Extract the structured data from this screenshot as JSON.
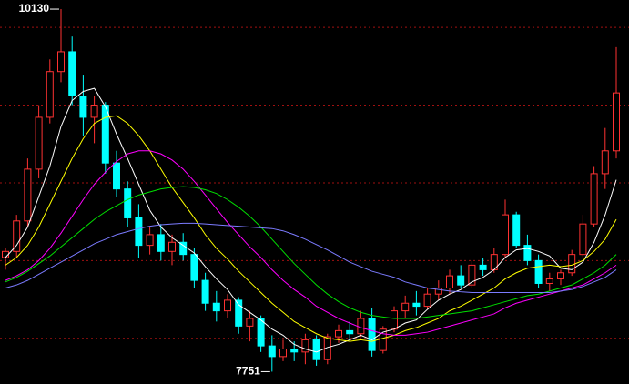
{
  "chart_data": {
    "type": "candlestick",
    "up_color": "#ff3232",
    "down_color": "#00ffff",
    "grid_color": "#a01010",
    "ylim": [
      7670,
      10190
    ],
    "gridlines": [
      10010,
      9500,
      8990,
      8480,
      7970
    ],
    "open": [
      8500,
      8540,
      8740,
      9080,
      9420,
      9720,
      9850,
      9560,
      9420,
      9500,
      9120,
      8950,
      8760,
      8580,
      8650,
      8540,
      8600,
      8520,
      8350,
      8200,
      8150,
      8220,
      8050,
      8100,
      7920,
      7850,
      7900,
      7880,
      7960,
      7830,
      7980,
      8020,
      8000,
      8100,
      7890,
      8030,
      8150,
      8200,
      8180,
      8260,
      8300,
      8380,
      8320,
      8450,
      8420,
      8520,
      8780,
      8580,
      8480,
      8330,
      8360,
      8400,
      8520,
      8720,
      9050,
      9200
    ],
    "high": [
      8560,
      8780,
      9150,
      9500,
      9800,
      10130,
      9950,
      9700,
      9560,
      9520,
      9200,
      9000,
      8850,
      8700,
      8720,
      8650,
      8660,
      8560,
      8400,
      8280,
      8260,
      8240,
      8150,
      8120,
      7990,
      7960,
      7950,
      8000,
      7990,
      8000,
      8060,
      8080,
      8150,
      8170,
      8050,
      8180,
      8250,
      8280,
      8300,
      8350,
      8420,
      8450,
      8480,
      8500,
      8560,
      8880,
      8800,
      8650,
      8520,
      8400,
      8420,
      8550,
      8780,
      9100,
      9350,
      9880
    ],
    "low": [
      8420,
      8500,
      8700,
      9020,
      9380,
      9650,
      9500,
      9300,
      9250,
      9050,
      8900,
      8700,
      8500,
      8520,
      8480,
      8450,
      8480,
      8300,
      8150,
      8080,
      8100,
      8000,
      7950,
      7880,
      7751,
      7820,
      7820,
      7800,
      7790,
      7800,
      7940,
      7960,
      7980,
      7850,
      7870,
      8010,
      8100,
      8120,
      8160,
      8220,
      8260,
      8300,
      8300,
      8380,
      8400,
      8500,
      8560,
      8450,
      8300,
      8280,
      8320,
      8380,
      8500,
      8700,
      8950,
      9150
    ],
    "close": [
      8540,
      8740,
      9080,
      9420,
      9720,
      9850,
      9560,
      9420,
      9500,
      9120,
      8950,
      8760,
      8580,
      8650,
      8540,
      8600,
      8520,
      8350,
      8200,
      8150,
      8220,
      8050,
      8100,
      7920,
      7850,
      7900,
      7880,
      7960,
      7830,
      7980,
      8020,
      8000,
      8100,
      7890,
      8030,
      8150,
      8200,
      8180,
      8260,
      8300,
      8380,
      8320,
      8450,
      8420,
      8520,
      8780,
      8580,
      8480,
      8330,
      8360,
      8400,
      8520,
      8720,
      9050,
      9200,
      9580
    ],
    "lines": [
      {
        "color": "#ffffff",
        "values": [
          8500,
          8580,
          8700,
          8900,
          9100,
          9360,
          9530,
          9590,
          9610,
          9490,
          9310,
          9150,
          8980,
          8810,
          8700,
          8630,
          8580,
          8530,
          8440,
          8360,
          8290,
          8190,
          8140,
          8090,
          8030,
          7990,
          7930,
          7900,
          7880,
          7910,
          7930,
          7960,
          7990,
          7960,
          8010,
          8030,
          8070,
          8090,
          8160,
          8220,
          8260,
          8290,
          8340,
          8370,
          8420,
          8500,
          8550,
          8560,
          8540,
          8510,
          8430,
          8420,
          8470,
          8600,
          8780,
          9010
        ]
      },
      {
        "color": "#ffff00",
        "values": [
          8450,
          8500,
          8580,
          8700,
          8850,
          9000,
          9150,
          9280,
          9380,
          9420,
          9430,
          9380,
          9300,
          9200,
          9080,
          8960,
          8860,
          8760,
          8650,
          8560,
          8490,
          8410,
          8340,
          8270,
          8200,
          8140,
          8080,
          8040,
          8000,
          7970,
          7960,
          7950,
          7960,
          7950,
          7970,
          7990,
          8020,
          8040,
          8070,
          8100,
          8150,
          8180,
          8220,
          8260,
          8300,
          8360,
          8400,
          8430,
          8440,
          8450,
          8440,
          8450,
          8480,
          8540,
          8620,
          8750
        ]
      },
      {
        "color": "#ff00ff",
        "values": [
          8350,
          8380,
          8420,
          8480,
          8560,
          8660,
          8770,
          8880,
          8980,
          9060,
          9130,
          9180,
          9200,
          9200,
          9180,
          9140,
          9080,
          9000,
          8910,
          8820,
          8730,
          8650,
          8570,
          8500,
          8420,
          8350,
          8290,
          8240,
          8180,
          8140,
          8100,
          8070,
          8040,
          8020,
          8000,
          7990,
          7990,
          8000,
          8010,
          8030,
          8050,
          8070,
          8090,
          8110,
          8130,
          8170,
          8200,
          8220,
          8240,
          8260,
          8280,
          8300,
          8320,
          8360,
          8400,
          8450
        ]
      },
      {
        "color": "#00e000",
        "values": [
          8340,
          8370,
          8410,
          8460,
          8510,
          8570,
          8630,
          8690,
          8750,
          8800,
          8840,
          8880,
          8910,
          8930,
          8950,
          8960,
          8965,
          8960,
          8945,
          8920,
          8880,
          8830,
          8770,
          8700,
          8620,
          8540,
          8460,
          8390,
          8320,
          8260,
          8210,
          8170,
          8140,
          8120,
          8110,
          8100,
          8100,
          8100,
          8110,
          8120,
          8130,
          8140,
          8150,
          8170,
          8190,
          8210,
          8230,
          8250,
          8260,
          8280,
          8300,
          8320,
          8360,
          8400,
          8450,
          8520
        ]
      },
      {
        "color": "#7b7bff",
        "values": [
          8300,
          8320,
          8350,
          8390,
          8430,
          8470,
          8510,
          8550,
          8590,
          8620,
          8650,
          8670,
          8690,
          8705,
          8715,
          8720,
          8725,
          8725,
          8720,
          8715,
          8710,
          8705,
          8700,
          8695,
          8690,
          8675,
          8650,
          8620,
          8585,
          8550,
          8510,
          8470,
          8440,
          8410,
          8390,
          8370,
          8340,
          8320,
          8300,
          8290,
          8280,
          8275,
          8270,
          8270,
          8270,
          8270,
          8270,
          8270,
          8270,
          8270,
          8280,
          8290,
          8310,
          8340,
          8370,
          8420
        ]
      }
    ],
    "annotations": [
      {
        "label": "10130",
        "value": 10130,
        "index": 5
      },
      {
        "label": "7751",
        "value": 7751,
        "index": 24
      }
    ]
  }
}
